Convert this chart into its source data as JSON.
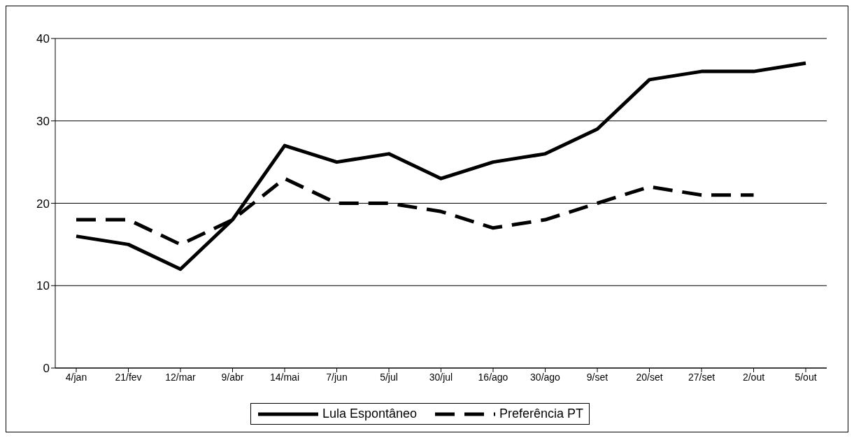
{
  "chart_data": {
    "type": "line",
    "categories": [
      "4/jan",
      "21/fev",
      "12/mar",
      "9/abr",
      "14/mai",
      "7/jun",
      "5/jul",
      "30/jul",
      "16/ago",
      "30/ago",
      "9/set",
      "20/set",
      "27/set",
      "2/out",
      "5/out"
    ],
    "series": [
      {
        "name": "Lula Espontâneo",
        "color": "#000000",
        "line_style": "solid",
        "values": [
          16,
          15,
          12,
          18,
          27,
          25,
          26,
          23,
          25,
          26,
          29,
          35,
          36,
          36,
          37
        ]
      },
      {
        "name": "Preferência PT",
        "color": "#000000",
        "line_style": "dashed",
        "values": [
          18,
          18,
          15,
          18,
          23,
          20,
          20,
          19,
          17,
          18,
          20,
          22,
          21,
          21,
          null
        ]
      }
    ],
    "ylim": [
      0,
      40
    ],
    "yticks": [
      0,
      10,
      20,
      30,
      40
    ],
    "grid": "y",
    "legend": "bottom",
    "marker": "none"
  }
}
